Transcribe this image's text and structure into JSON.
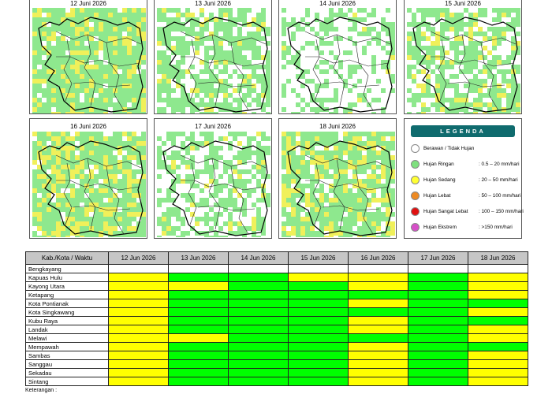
{
  "maps": [
    {
      "date": "12 Juni 2026"
    },
    {
      "date": "13 Juni 2026"
    },
    {
      "date": "14 Juni 2026"
    },
    {
      "date": "15 Juni 2026"
    },
    {
      "date": "16 Juni 2026"
    },
    {
      "date": "17 Juni 2026"
    },
    {
      "date": "18 Juni 2026"
    }
  ],
  "legend": {
    "title": "LEGENDA",
    "items": [
      {
        "name": "Berawan / Tidak Hujan",
        "range": "",
        "color": "#ffffff"
      },
      {
        "name": "Hujan Ringan",
        "range": ": 0.5 – 20 mm/hari",
        "color": "#7ee07e"
      },
      {
        "name": "Hujan Sedang",
        "range": ": 20 – 50 mm/hari",
        "color": "#ffff33"
      },
      {
        "name": "Hujan Lebat",
        "range": ": 50 – 100 mm/hari",
        "color": "#ee8a22"
      },
      {
        "name": "Hujan Sangat Lebat",
        "range": ": 100 – 150 mm/hari",
        "color": "#e01010"
      },
      {
        "name": "Hujan Ekstrem",
        "range": ": >150 mm/hari",
        "color": "#d64fc8"
      }
    ]
  },
  "table": {
    "header": "Kab./Kota / Waktu",
    "dates": [
      "12 Jun 2026",
      "13 Jun 2026",
      "14 Jun 2026",
      "15 Jun 2026",
      "16 Jun 2026",
      "17 Jun 2026",
      "18 Jun 2026"
    ],
    "category_colors": {
      "ringan": "#00ff00",
      "sedang": "#ffff00",
      "none": "#ffffff"
    },
    "rows": [
      {
        "name": "Bengkayang",
        "cells": [
          "none",
          "none",
          "none",
          "none",
          "none",
          "none",
          "none"
        ]
      },
      {
        "name": "Kapuas Hulu",
        "cells": [
          "sedang",
          "ringan",
          "ringan",
          "sedang",
          "sedang",
          "ringan",
          "sedang"
        ]
      },
      {
        "name": "Kayong Utara",
        "cells": [
          "sedang",
          "sedang",
          "ringan",
          "ringan",
          "sedang",
          "ringan",
          "sedang"
        ]
      },
      {
        "name": "Ketapang",
        "cells": [
          "sedang",
          "ringan",
          "ringan",
          "ringan",
          "ringan",
          "ringan",
          "sedang"
        ]
      },
      {
        "name": "Kota Pontianak",
        "cells": [
          "sedang",
          "ringan",
          "ringan",
          "ringan",
          "sedang",
          "ringan",
          "ringan"
        ]
      },
      {
        "name": "Kota Singkawang",
        "cells": [
          "sedang",
          "ringan",
          "ringan",
          "ringan",
          "ringan",
          "ringan",
          "sedang"
        ]
      },
      {
        "name": "Kubu Raya",
        "cells": [
          "sedang",
          "ringan",
          "ringan",
          "ringan",
          "sedang",
          "ringan",
          "ringan"
        ]
      },
      {
        "name": "Landak",
        "cells": [
          "sedang",
          "ringan",
          "ringan",
          "ringan",
          "sedang",
          "ringan",
          "sedang"
        ]
      },
      {
        "name": "Melawi",
        "cells": [
          "sedang",
          "sedang",
          "ringan",
          "ringan",
          "ringan",
          "ringan",
          "sedang"
        ]
      },
      {
        "name": "Mempawah",
        "cells": [
          "sedang",
          "ringan",
          "ringan",
          "ringan",
          "sedang",
          "ringan",
          "ringan"
        ]
      },
      {
        "name": "Sambas",
        "cells": [
          "sedang",
          "ringan",
          "ringan",
          "ringan",
          "sedang",
          "ringan",
          "sedang"
        ]
      },
      {
        "name": "Sanggau",
        "cells": [
          "sedang",
          "ringan",
          "ringan",
          "ringan",
          "sedang",
          "ringan",
          "sedang"
        ]
      },
      {
        "name": "Sekadau",
        "cells": [
          "sedang",
          "ringan",
          "ringan",
          "ringan",
          "sedang",
          "ringan",
          "sedang"
        ]
      },
      {
        "name": "Sintang",
        "cells": [
          "sedang",
          "ringan",
          "ringan",
          "ringan",
          "sedang",
          "ringan",
          "sedang"
        ]
      }
    ]
  },
  "note": "Keterangan :"
}
